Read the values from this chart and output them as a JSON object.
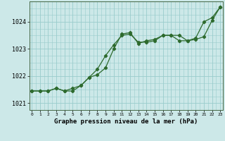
{
  "line1_x": [
    0,
    1,
    2,
    3,
    4,
    5,
    6,
    7,
    8,
    9,
    10,
    11,
    12,
    13,
    14,
    15,
    16,
    17,
    18,
    19,
    20,
    21,
    22,
    23
  ],
  "line1_y": [
    1021.45,
    1021.45,
    1021.45,
    1021.55,
    1021.45,
    1021.55,
    1021.65,
    1021.95,
    1022.25,
    1022.75,
    1023.15,
    1023.5,
    1023.55,
    1023.25,
    1023.25,
    1023.3,
    1023.5,
    1023.5,
    1023.3,
    1023.3,
    1023.35,
    1023.45,
    1024.05,
    1024.55
  ],
  "line2_x": [
    0,
    1,
    2,
    3,
    4,
    5,
    6,
    7,
    8,
    9,
    10,
    11,
    12,
    13,
    14,
    15,
    16,
    17,
    18,
    19,
    20,
    21,
    22,
    23
  ],
  "line2_y": [
    1021.45,
    1021.45,
    1021.45,
    1021.55,
    1021.45,
    1021.45,
    1021.65,
    1021.95,
    1022.05,
    1022.3,
    1023.0,
    1023.55,
    1023.6,
    1023.2,
    1023.3,
    1023.35,
    1023.5,
    1023.5,
    1023.5,
    1023.3,
    1023.4,
    1024.0,
    1024.15,
    1024.55
  ],
  "line_color": "#2d6a2d",
  "bg_color": "#cce8e8",
  "grid_color": "#99cccc",
  "xlabel": "Graphe pression niveau de la mer (hPa)",
  "yticks": [
    1021,
    1022,
    1023,
    1024
  ],
  "xticks": [
    0,
    1,
    2,
    3,
    4,
    5,
    6,
    7,
    8,
    9,
    10,
    11,
    12,
    13,
    14,
    15,
    16,
    17,
    18,
    19,
    20,
    21,
    22,
    23
  ],
  "ylim": [
    1020.75,
    1024.75
  ],
  "xlim": [
    -0.3,
    23.3
  ]
}
